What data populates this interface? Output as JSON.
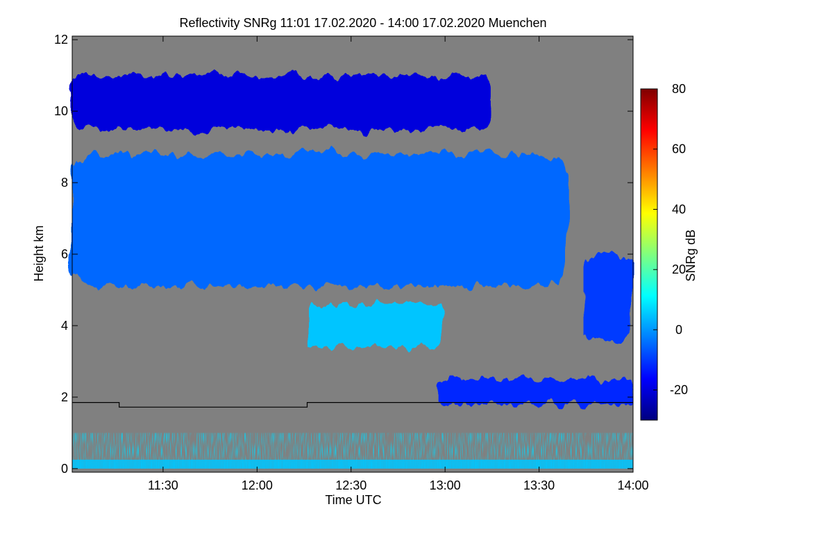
{
  "chart_data": {
    "type": "heatmap",
    "title": "Reflectivity SNRg   11:01 17.02.2020 - 14:00 17.02.2020 Muenchen",
    "xlabel": "Time UTC",
    "ylabel": "Height km",
    "colorbar_label": "SNRg dB",
    "x_range_minutes_utc": [
      661,
      840
    ],
    "y_range_km": [
      -0.1,
      12.1
    ],
    "x_ticks": [
      {
        "label": "11:30",
        "value": 690
      },
      {
        "label": "12:00",
        "value": 720
      },
      {
        "label": "12:30",
        "value": 750
      },
      {
        "label": "13:00",
        "value": 780
      },
      {
        "label": "13:30",
        "value": 810
      },
      {
        "label": "14:00",
        "value": 840
      }
    ],
    "y_ticks": [
      {
        "label": "0",
        "value": 0
      },
      {
        "label": "2",
        "value": 2
      },
      {
        "label": "4",
        "value": 4
      },
      {
        "label": "6",
        "value": 6
      },
      {
        "label": "8",
        "value": 8
      },
      {
        "label": "10",
        "value": 10
      },
      {
        "label": "12",
        "value": 12
      }
    ],
    "colorbar_range_db": [
      -30,
      80
    ],
    "colorbar_ticks": [
      {
        "label": "-20",
        "value": -20
      },
      {
        "label": "0",
        "value": 0
      },
      {
        "label": "20",
        "value": 20
      },
      {
        "label": "40",
        "value": 40
      },
      {
        "label": "60",
        "value": 60
      },
      {
        "label": "80",
        "value": 80
      }
    ],
    "colormap": [
      "#00007f",
      "#0000ff",
      "#007fff",
      "#00ffff",
      "#7fff7f",
      "#ffff00",
      "#ff7f00",
      "#ff0000",
      "#7f0000"
    ],
    "no_signal_color": "#808080",
    "cloud_layers": [
      {
        "name": "cirrus-layer",
        "t_start": 661,
        "t_end": 795,
        "base_km": 9.5,
        "top_km": 11.0,
        "snr_db": -20
      },
      {
        "name": "main-cloud-layer",
        "t_start": 661,
        "t_end": 819,
        "base_km": 5.1,
        "top_km": 8.8,
        "snr_db": -5
      },
      {
        "name": "mid-cloud-patch",
        "t_start": 736,
        "t_end": 779,
        "base_km": 3.4,
        "top_km": 4.6,
        "snr_db": 5
      },
      {
        "name": "low-layer",
        "t_start": 778,
        "t_end": 840,
        "base_km": 1.8,
        "top_km": 2.5,
        "snr_db": -12
      },
      {
        "name": "right-patch",
        "t_start": 825,
        "t_end": 840,
        "base_km": 3.6,
        "top_km": 6.0,
        "snr_db": -10
      },
      {
        "name": "boundary-layer-clutter",
        "t_start": 661,
        "t_end": 840,
        "base_km": 0.0,
        "top_km": 1.0,
        "snr_db": 5
      }
    ],
    "cloud_base_line_km": [
      {
        "t": 661,
        "km": 1.85
      },
      {
        "t": 676,
        "km": 1.85
      },
      {
        "t": 676,
        "km": 1.72
      },
      {
        "t": 736,
        "km": 1.72
      },
      {
        "t": 736,
        "km": 1.85
      },
      {
        "t": 840,
        "km": 1.85
      }
    ]
  }
}
